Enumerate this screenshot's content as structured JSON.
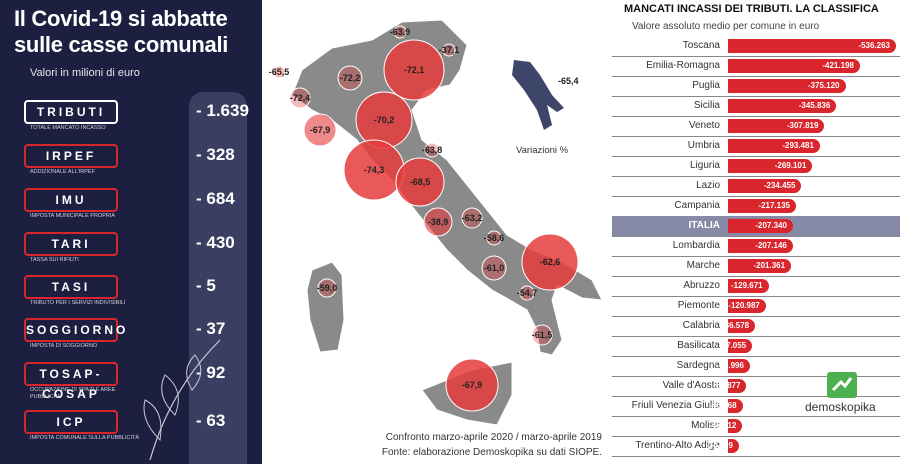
{
  "left": {
    "title_line1": "Il Covid-19 si abbatte",
    "title_line2": "sulle casse comunali",
    "subtitle": "Valori in milioni di euro",
    "rows": [
      {
        "label": "TRIBUTI",
        "sub": "TOTALE MANCATO INCASSO",
        "value": "- 1.639"
      },
      {
        "label": "IRPEF",
        "sub": "ADDIZIONALE ALL'IRPEF",
        "value": "- 328"
      },
      {
        "label": "IMU",
        "sub": "IMPOSTA MUNICIPALE PROPRIA",
        "value": "- 684"
      },
      {
        "label": "TARI",
        "sub": "TASSA SUI RIFIUTI",
        "value": "- 430"
      },
      {
        "label": "TASI",
        "sub": "TRIBUTO PER I SERVIZI INDIVISIBILI",
        "value": "- 5"
      },
      {
        "label": "SOGGIORNO",
        "sub": "IMPOSTA DI SOGGIORNO",
        "value": "- 37"
      },
      {
        "label": "TOSAP-COSAP",
        "sub": "OCCUPAZIONE DI SPAZI E AREE PUBBLICHE",
        "value": "- 92"
      },
      {
        "label": "ICP",
        "sub": "IMPOSTA COMUNALE SULLA PUBBLICITÀ",
        "value": "- 63"
      }
    ]
  },
  "map": {
    "legend_label": "Variazioni %",
    "footer_line1": "Confronto marzo-aprile 2020 / marzo-aprile 2019",
    "footer_line2": "Fonte: elaborazione Demoskopika su dati SIOPE.",
    "inset_value": "-65,4",
    "bubbles": [
      {
        "label": "-63,9"
      },
      {
        "label": "-37,1"
      },
      {
        "label": "-65,5"
      },
      {
        "label": "-72,2"
      },
      {
        "label": "-72,1"
      },
      {
        "label": "-72,4"
      },
      {
        "label": "-67,9"
      },
      {
        "label": "-70,2"
      },
      {
        "label": "-74,3"
      },
      {
        "label": "-68,5"
      },
      {
        "label": "-63,8"
      },
      {
        "label": "-38,9"
      },
      {
        "label": "-63,2"
      },
      {
        "label": "-58,6"
      },
      {
        "label": "-61,0"
      },
      {
        "label": "-62,6"
      },
      {
        "label": "-54,7"
      },
      {
        "label": "-59,0"
      },
      {
        "label": "-61,5"
      },
      {
        "label": "-67,9"
      }
    ]
  },
  "chart_data": {
    "type": "bar",
    "title": "MANCATI INCASSI DEI TRIBUTI. LA CLASSIFICA",
    "subtitle": "Valore assoluto medio per comune in euro",
    "categories": [
      "Toscana",
      "Emilia-Romagna",
      "Puglia",
      "Sicilia",
      "Veneto",
      "Umbria",
      "Liguria",
      "Lazio",
      "Campania",
      "ITALIA",
      "Lombardia",
      "Marche",
      "Abruzzo",
      "Piemonte",
      "Calabria",
      "Basilicata",
      "Sardegna",
      "Valle d'Aosta",
      "Friuli Venezia Giulia",
      "Molise",
      "Trentino-Alto Adige"
    ],
    "values": [
      -536263,
      -421198,
      -375120,
      -345836,
      -307819,
      -293481,
      -269101,
      -234455,
      -217135,
      -207340,
      -207146,
      -201361,
      -129671,
      -120987,
      -86578,
      -77055,
      -69996,
      -58877,
      -46568,
      -45812,
      -34909
    ],
    "value_labels": [
      "-536.263",
      "-421.198",
      "-375.120",
      "-345.836",
      "-307.819",
      "-293.481",
      "-269.101",
      "-234.455",
      "-217.135",
      "-207.340",
      "-207.146",
      "-201.361",
      "-129.671",
      "-120.987",
      "-86.578",
      "-77.055",
      "-69.996",
      "-58.877",
      "-46.568",
      "-45.812",
      "-34.909"
    ],
    "highlight": "ITALIA",
    "bar_color": "#d9262c",
    "highlight_row_color": "#868aa6"
  },
  "brand": {
    "name": "demoskopika",
    "color": "#4caf50"
  }
}
